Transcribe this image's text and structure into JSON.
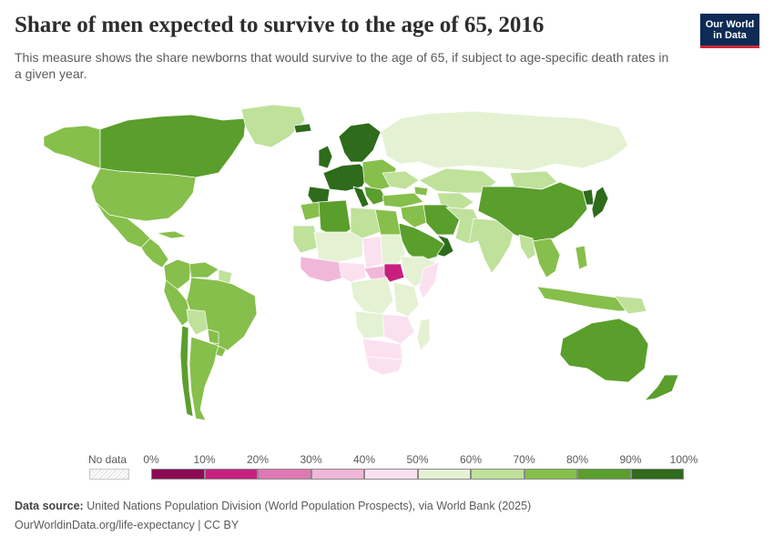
{
  "header": {
    "title": "Share of men expected to survive to the age of 65, 2016",
    "subtitle": "This measure shows the share newborns that would survive to the age of 65, if subject to age-specific death rates in a given year."
  },
  "logo": {
    "line1": "Our World",
    "line2": "in Data"
  },
  "legend": {
    "no_data_label": "No data",
    "ticks": [
      "0%",
      "10%",
      "20%",
      "30%",
      "40%",
      "50%",
      "60%",
      "70%",
      "80%",
      "90%",
      "100%"
    ],
    "colors": [
      "#8c0a55",
      "#c81f7f",
      "#de78b2",
      "#f0b7d9",
      "#fbe1ef",
      "#e4f2d3",
      "#bfe19a",
      "#86bf4b",
      "#5a9e2c",
      "#2e6b1b"
    ]
  },
  "source": {
    "label": "Data source:",
    "text": "United Nations Population Division (World Population Prospects), via World Bank (2025)"
  },
  "footer": {
    "url": "OurWorldinData.org/life-expectancy | CC BY"
  },
  "colors": {
    "ocean_border": "#ffffff",
    "country_stroke": "#ffffff"
  }
}
